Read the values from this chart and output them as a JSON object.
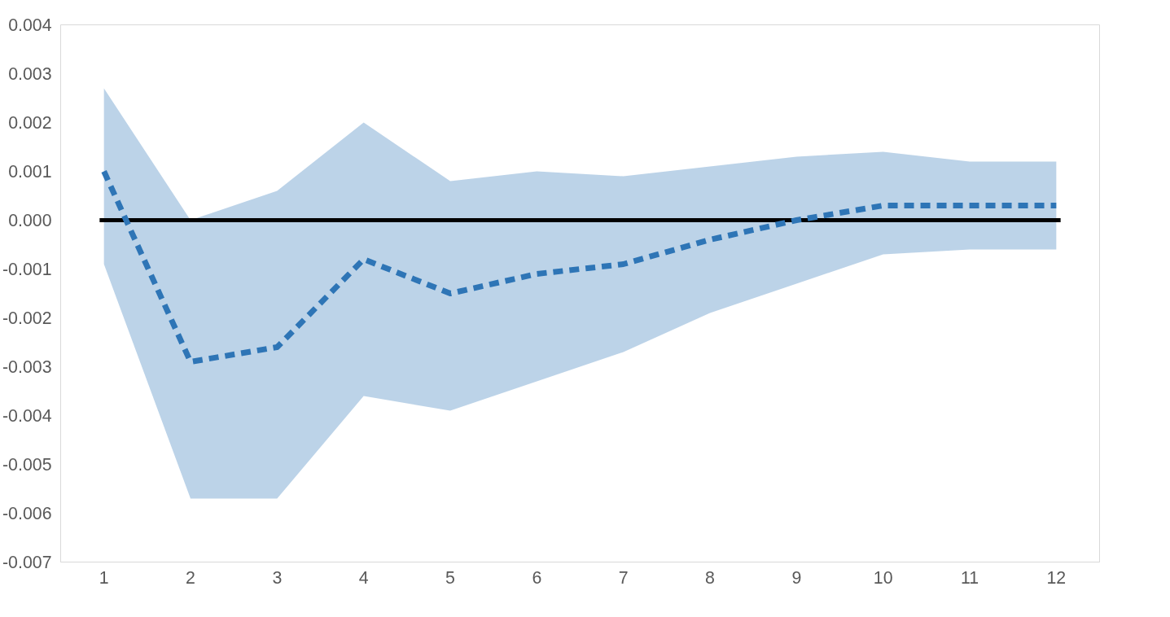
{
  "chart_data": {
    "type": "line",
    "x": [
      1,
      2,
      3,
      4,
      5,
      6,
      7,
      8,
      9,
      10,
      11,
      12
    ],
    "xlim": [
      0.5,
      12.5
    ],
    "xticks": [
      1,
      2,
      3,
      4,
      5,
      6,
      7,
      8,
      9,
      10,
      11,
      12
    ],
    "series": [
      {
        "color": "#2e75b6",
        "line_style": "dashed",
        "values": [
          0.001,
          -0.0029,
          -0.0026,
          -0.0008,
          -0.0015,
          -0.0011,
          -0.0009,
          -0.0004,
          0.0,
          0.0003,
          0.0003,
          0.0003
        ],
        "lower": [
          -0.0009,
          -0.0057,
          -0.0057,
          -0.0036,
          -0.0039,
          -0.0033,
          -0.0027,
          -0.0019,
          -0.0013,
          -0.0007,
          -0.0006,
          -0.0006
        ],
        "upper": [
          0.0027,
          0.0,
          0.0006,
          0.002,
          0.0008,
          0.001,
          0.0009,
          0.0011,
          0.0013,
          0.0014,
          0.0012,
          0.0012
        ]
      }
    ],
    "ylim": [
      -0.007,
      0.004
    ],
    "yticks": [
      {
        "value": 0.004,
        "label": "0.004"
      },
      {
        "value": 0.003,
        "label": "0.003"
      },
      {
        "value": 0.002,
        "label": "0.002"
      },
      {
        "value": 0.001,
        "label": "0.001"
      },
      {
        "value": 0,
        "label": "0.000"
      },
      {
        "value": -0.001,
        "label": "-0.001"
      },
      {
        "value": -0.002,
        "label": "-0.002"
      },
      {
        "value": -0.003,
        "label": "-0.003"
      },
      {
        "value": -0.004,
        "label": "-0.004"
      },
      {
        "value": -0.005,
        "label": "-0.005"
      },
      {
        "value": -0.006,
        "label": "-0.006"
      },
      {
        "value": -0.007,
        "label": "-0.007"
      }
    ],
    "ref_lines": [
      {
        "axis": "y",
        "value": 0,
        "color": "#000000",
        "line_style": "solid"
      }
    ],
    "grid": false,
    "marker": "none"
  }
}
